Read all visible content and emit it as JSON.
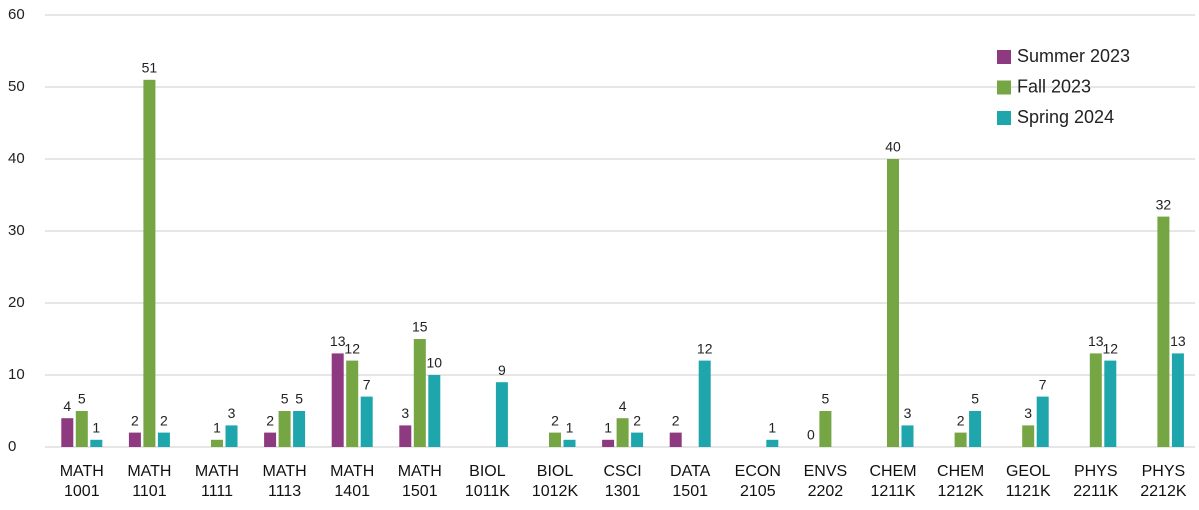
{
  "chart_data": {
    "type": "bar",
    "categories": [
      "MATH 1001",
      "MATH 1101",
      "MATH 1111",
      "MATH 1113",
      "MATH 1401",
      "MATH 1501",
      "BIOL 1011K",
      "BIOL 1012K",
      "CSCI 1301",
      "DATA 1501",
      "ECON 2105",
      "ENVS 2202",
      "CHEM 1211K",
      "CHEM 1212K",
      "GEOL 1121K",
      "PHYS 2211K",
      "PHYS 2212K"
    ],
    "series": [
      {
        "name": "Summer 2023",
        "color": "#8e3a80",
        "values": [
          4,
          2,
          null,
          2,
          13,
          3,
          null,
          null,
          1,
          2,
          null,
          0,
          null,
          null,
          null,
          null,
          null
        ]
      },
      {
        "name": "Fall 2023",
        "color": "#76a543",
        "values": [
          5,
          51,
          1,
          5,
          12,
          15,
          null,
          2,
          4,
          null,
          null,
          5,
          40,
          2,
          3,
          13,
          32
        ]
      },
      {
        "name": "Spring 2024",
        "color": "#1fa6ad",
        "values": [
          1,
          2,
          3,
          5,
          7,
          10,
          9,
          1,
          2,
          12,
          1,
          null,
          3,
          5,
          7,
          12,
          13
        ]
      }
    ],
    "ylim": [
      0,
      60
    ],
    "yticks": [
      0,
      10,
      20,
      30,
      40,
      50,
      60
    ],
    "grid": true,
    "legend": "upper right"
  }
}
